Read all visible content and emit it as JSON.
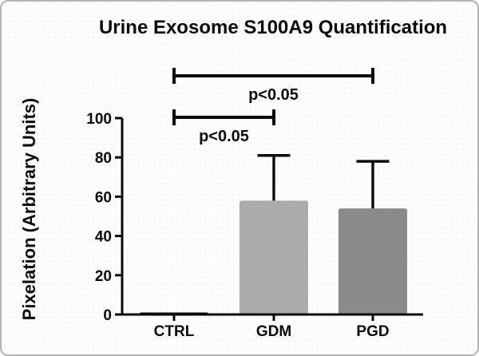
{
  "figure": {
    "border_color": "#b3b3b3",
    "background_color": "#fdfdfd"
  },
  "chart_data": {
    "type": "bar",
    "title": "Urine Exosome S100A9 Quantification",
    "xlabel": "",
    "ylabel": "Pixelation (Arbitrary Units)",
    "categories": [
      "CTRL",
      "GDM",
      "PGD"
    ],
    "values": [
      1,
      58,
      54
    ],
    "error_up": [
      0,
      23,
      24
    ],
    "bar_colors": [
      "#0d0d0d",
      "#ababab",
      "#8a8a8a"
    ],
    "ylim": [
      0,
      100
    ],
    "yticks": [
      0,
      20,
      40,
      60,
      80,
      100
    ],
    "grid": false,
    "legend": "none",
    "axis_color": "#0a0a0a",
    "text_color": "#0a0a0a",
    "significance": [
      {
        "from": "CTRL",
        "to": "GDM",
        "label": "p<0.05",
        "level": 1
      },
      {
        "from": "CTRL",
        "to": "PGD",
        "label": "p<0.05",
        "level": 2
      }
    ]
  }
}
